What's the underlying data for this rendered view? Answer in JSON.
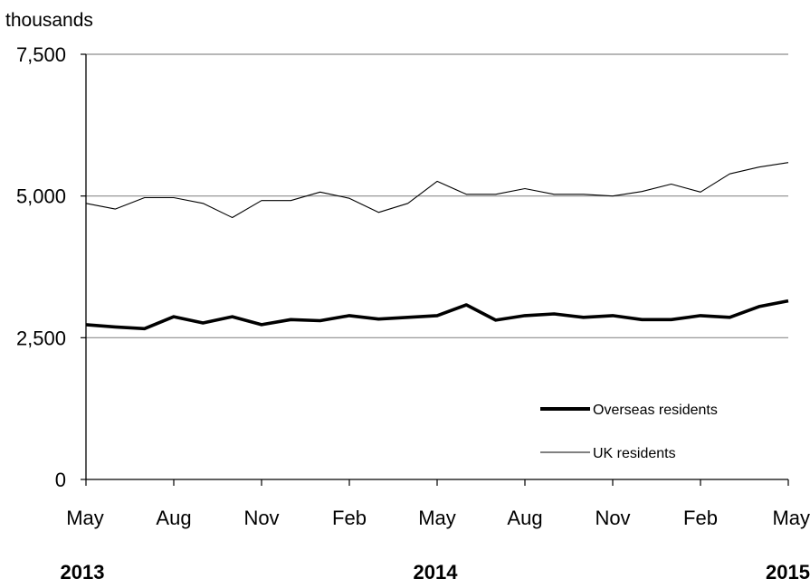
{
  "chart_data": {
    "type": "line",
    "unit_label": "thousands",
    "ylim": [
      0,
      7500
    ],
    "y_ticks": [
      {
        "value": 0,
        "label": "0"
      },
      {
        "value": 2500,
        "label": "2,500"
      },
      {
        "value": 5000,
        "label": "5,000"
      },
      {
        "value": 7500,
        "label": "7,500"
      }
    ],
    "x": [
      "May 2013",
      "Jun 2013",
      "Jul 2013",
      "Aug 2013",
      "Sep 2013",
      "Oct 2013",
      "Nov 2013",
      "Dec 2013",
      "Jan 2014",
      "Feb 2014",
      "Mar 2014",
      "Apr 2014",
      "May 2014",
      "Jun 2014",
      "Jul 2014",
      "Aug 2014",
      "Sep 2014",
      "Oct 2014",
      "Nov 2014",
      "Dec 2014",
      "Jan 2015",
      "Feb 2015",
      "Mar 2015",
      "Apr 2015",
      "May 2015"
    ],
    "x_tick_labels": [
      {
        "index": 0,
        "label": "May"
      },
      {
        "index": 3,
        "label": "Aug"
      },
      {
        "index": 6,
        "label": "Nov"
      },
      {
        "index": 9,
        "label": "Feb"
      },
      {
        "index": 12,
        "label": "May"
      },
      {
        "index": 15,
        "label": "Aug"
      },
      {
        "index": 18,
        "label": "Nov"
      },
      {
        "index": 21,
        "label": "Feb"
      },
      {
        "index": 24,
        "label": "May"
      }
    ],
    "year_labels": [
      {
        "index": 0,
        "label": "2013"
      },
      {
        "index": 12,
        "label": "2014"
      },
      {
        "index": 24,
        "label": "2015"
      }
    ],
    "grid": true,
    "legend_position": "bottom-right",
    "series": [
      {
        "name": "Overseas residents",
        "style": "thick",
        "color": "#000000",
        "values": [
          2730,
          2690,
          2660,
          2870,
          2760,
          2870,
          2730,
          2820,
          2800,
          2890,
          2830,
          2860,
          2890,
          3080,
          2810,
          2890,
          2920,
          2860,
          2890,
          2820,
          2820,
          2890,
          2860,
          3050,
          3150
        ]
      },
      {
        "name": "UK residents",
        "style": "thin",
        "color": "#000000",
        "values": [
          4870,
          4770,
          4970,
          4970,
          4870,
          4620,
          4920,
          4920,
          5070,
          4960,
          4710,
          4870,
          5260,
          5030,
          5030,
          5130,
          5030,
          5030,
          5000,
          5080,
          5210,
          5070,
          5390,
          5510,
          5590
        ]
      }
    ]
  }
}
